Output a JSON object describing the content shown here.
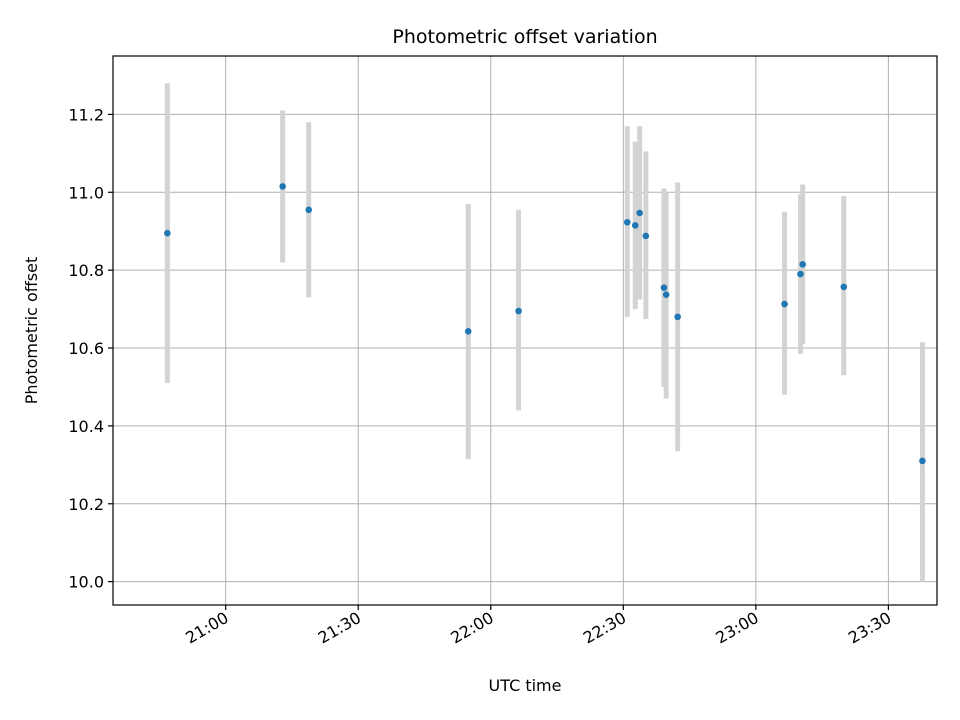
{
  "chart_data": {
    "type": "scatter",
    "title": "Photometric offset variation",
    "xlabel": "UTC time",
    "ylabel": "Photometric offset",
    "grid": true,
    "xlim_minutes": [
      1234.5,
      1421.0
    ],
    "ylim": [
      9.94,
      11.35
    ],
    "x_ticks": [
      {
        "value": 1260,
        "label": "21:00"
      },
      {
        "value": 1290,
        "label": "21:30"
      },
      {
        "value": 1320,
        "label": "22:00"
      },
      {
        "value": 1350,
        "label": "22:30"
      },
      {
        "value": 1380,
        "label": "23:00"
      },
      {
        "value": 1410,
        "label": "23:30"
      }
    ],
    "y_ticks": [
      {
        "value": 10.0,
        "label": "10.0"
      },
      {
        "value": 10.2,
        "label": "10.2"
      },
      {
        "value": 10.4,
        "label": "10.4"
      },
      {
        "value": 10.6,
        "label": "10.6"
      },
      {
        "value": 10.8,
        "label": "10.8"
      },
      {
        "value": 11.0,
        "label": "11.0"
      },
      {
        "value": 11.2,
        "label": "11.2"
      }
    ],
    "x_unit": "minutes since 00:00 UTC",
    "points": [
      {
        "t": 1246.8,
        "y": 10.895,
        "lo": 10.51,
        "hi": 11.28
      },
      {
        "t": 1272.9,
        "y": 11.015,
        "lo": 10.82,
        "hi": 11.21
      },
      {
        "t": 1278.8,
        "y": 10.955,
        "lo": 10.73,
        "hi": 11.18
      },
      {
        "t": 1314.9,
        "y": 10.643,
        "lo": 10.315,
        "hi": 10.97
      },
      {
        "t": 1326.3,
        "y": 10.695,
        "lo": 10.44,
        "hi": 10.955
      },
      {
        "t": 1350.9,
        "y": 10.923,
        "lo": 10.68,
        "hi": 11.17
      },
      {
        "t": 1352.7,
        "y": 10.915,
        "lo": 10.7,
        "hi": 11.13
      },
      {
        "t": 1353.7,
        "y": 10.947,
        "lo": 10.725,
        "hi": 11.17
      },
      {
        "t": 1355.1,
        "y": 10.888,
        "lo": 10.675,
        "hi": 11.105
      },
      {
        "t": 1359.2,
        "y": 10.755,
        "lo": 10.5,
        "hi": 11.01
      },
      {
        "t": 1359.7,
        "y": 10.737,
        "lo": 10.47,
        "hi": 11.0
      },
      {
        "t": 1362.3,
        "y": 10.68,
        "lo": 10.335,
        "hi": 11.025
      },
      {
        "t": 1386.5,
        "y": 10.713,
        "lo": 10.48,
        "hi": 10.95
      },
      {
        "t": 1390.1,
        "y": 10.79,
        "lo": 10.585,
        "hi": 10.995
      },
      {
        "t": 1390.6,
        "y": 10.815,
        "lo": 10.61,
        "hi": 11.02
      },
      {
        "t": 1399.9,
        "y": 10.757,
        "lo": 10.53,
        "hi": 10.99
      },
      {
        "t": 1417.7,
        "y": 10.31,
        "lo": 10.0,
        "hi": 10.615
      }
    ],
    "colors": {
      "point": "#1f77b4",
      "errorbar": "#d3d3d3",
      "grid": "#b0b0b0",
      "axis": "#000000"
    }
  }
}
